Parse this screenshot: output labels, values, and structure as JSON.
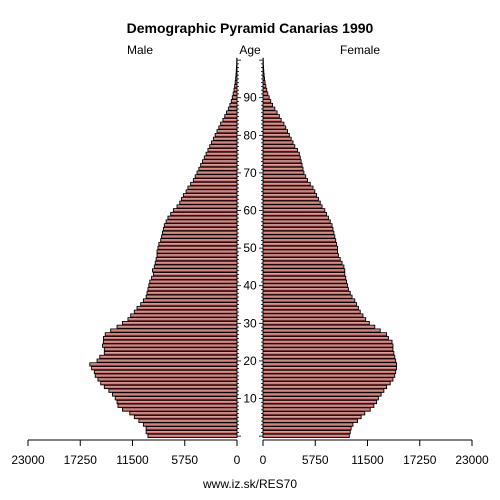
{
  "chart_data": {
    "type": "bar",
    "title": "Demographic Pyramid Canarias 1990",
    "left_label": "Male",
    "center_label": "Age",
    "right_label": "Female",
    "footer": "www.iz.sk/RES70",
    "x_range": [
      0,
      23000
    ],
    "x_ticks_left": [
      "23000",
      "17250",
      "11500",
      "5750",
      "0"
    ],
    "x_ticks_right": [
      "0",
      "5750",
      "11500",
      "17250",
      "23000"
    ],
    "x_tick_values": [
      23000,
      17250,
      11500,
      5750,
      0
    ],
    "age_ticks": [
      "10",
      "20",
      "30",
      "40",
      "50",
      "60",
      "70",
      "80",
      "90"
    ],
    "age_tick_values": [
      10,
      20,
      30,
      40,
      50,
      60,
      70,
      80,
      90
    ],
    "ages": [
      0,
      1,
      2,
      3,
      4,
      5,
      6,
      7,
      8,
      9,
      10,
      11,
      12,
      13,
      14,
      15,
      16,
      17,
      18,
      19,
      20,
      21,
      22,
      23,
      24,
      25,
      26,
      27,
      28,
      29,
      30,
      31,
      32,
      33,
      34,
      35,
      36,
      37,
      38,
      39,
      40,
      41,
      42,
      43,
      44,
      45,
      46,
      47,
      48,
      49,
      50,
      51,
      52,
      53,
      54,
      55,
      56,
      57,
      58,
      59,
      60,
      61,
      62,
      63,
      64,
      65,
      66,
      67,
      68,
      69,
      70,
      71,
      72,
      73,
      74,
      75,
      76,
      77,
      78,
      79,
      80,
      81,
      82,
      83,
      84,
      85,
      86,
      87,
      88,
      89,
      90,
      91,
      92,
      93,
      94,
      95,
      96,
      97,
      98,
      99,
      100
    ],
    "male": [
      9800,
      10000,
      10000,
      10300,
      10800,
      11300,
      11800,
      12600,
      13100,
      13200,
      13400,
      13700,
      14100,
      14600,
      15000,
      15300,
      15600,
      15700,
      16000,
      16200,
      15400,
      15100,
      14600,
      14600,
      14800,
      14700,
      14700,
      14500,
      13900,
      13200,
      12600,
      12000,
      11700,
      11300,
      11000,
      10600,
      10300,
      10000,
      9900,
      9800,
      9700,
      9600,
      9400,
      9200,
      9300,
      9100,
      9000,
      8900,
      8800,
      8800,
      8700,
      8600,
      8400,
      8300,
      8200,
      8100,
      8000,
      7800,
      7600,
      7300,
      7000,
      6600,
      6300,
      6100,
      5900,
      5600,
      5400,
      5100,
      4800,
      4600,
      4400,
      4200,
      4000,
      3800,
      3600,
      3400,
      3200,
      3000,
      2800,
      2600,
      2400,
      2200,
      2000,
      1800,
      1550,
      1350,
      1150,
      950,
      780,
      630,
      520,
      420,
      330,
      260,
      200,
      150,
      110,
      80,
      60,
      40,
      30
    ],
    "female": [
      9500,
      9600,
      9700,
      9900,
      10400,
      10800,
      11200,
      11800,
      12200,
      12500,
      12700,
      13000,
      13300,
      13600,
      14000,
      14300,
      14500,
      14600,
      14700,
      14700,
      14600,
      14500,
      14400,
      14300,
      14300,
      14200,
      13800,
      13600,
      12900,
      12300,
      11700,
      11300,
      11000,
      10700,
      10500,
      10300,
      10100,
      9800,
      9600,
      9400,
      9300,
      9200,
      9100,
      9000,
      9000,
      8900,
      8700,
      8500,
      8300,
      8200,
      8200,
      8100,
      8000,
      7900,
      7800,
      7700,
      7600,
      7400,
      7200,
      7000,
      6800,
      6500,
      6300,
      6100,
      5900,
      5700,
      5500,
      5200,
      4900,
      4700,
      4500,
      4400,
      4300,
      4200,
      4100,
      4000,
      3800,
      3500,
      3300,
      3100,
      2900,
      2700,
      2500,
      2300,
      2000,
      1800,
      1550,
      1300,
      1050,
      850,
      680,
      530,
      410,
      310,
      230,
      170,
      120,
      85,
      60,
      40,
      30
    ]
  }
}
